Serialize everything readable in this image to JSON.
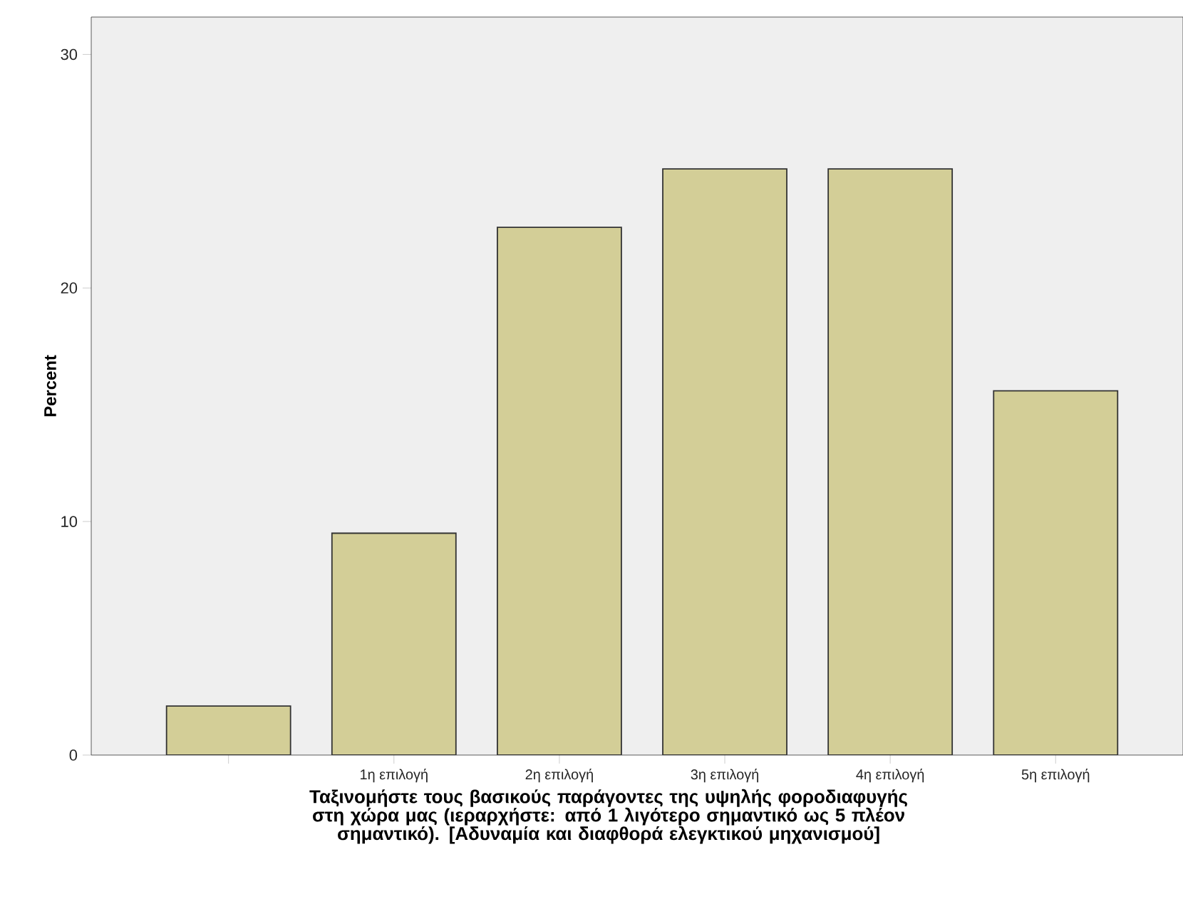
{
  "chart_data": {
    "type": "bar",
    "categories": [
      null,
      "1η επιλογή",
      "2η επιλογή",
      "3η επιλογή",
      "4η επιλογή",
      "5η επιλογή"
    ],
    "values": [
      2.1,
      9.5,
      22.6,
      25.1,
      25.1,
      15.6
    ],
    "color": "#d3ce97",
    "xlabel": "Ταξινομήστε τους βασικούς παράγοντες της υψηλής φοροδιαφυγής στη χώρα μας (ιεραρχήστε: από 1 λιγότερο σημαντικό ως 5 πλέον σημαντικό). [Αδυναμία και διαφθορά ελεγκτικού μηχανισμού]",
    "ylabel": "Percent",
    "ylim": [
      0,
      31.6
    ],
    "yticks": [
      0,
      10,
      20,
      30
    ],
    "grid": false
  }
}
